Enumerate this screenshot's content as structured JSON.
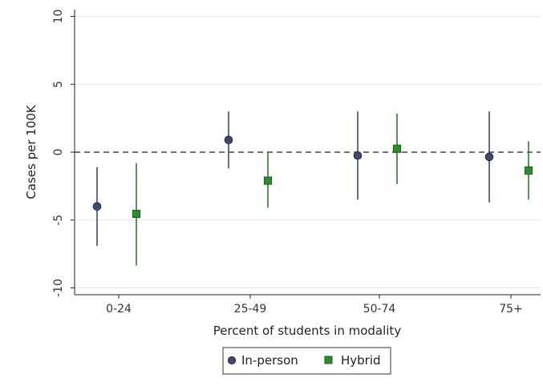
{
  "chart_data": {
    "type": "scatter",
    "subtype": "coefficient plot with confidence intervals",
    "categories": [
      "0-24",
      "25-49",
      "50-74",
      "75+"
    ],
    "xlabel": "Percent of students in modality",
    "ylabel": "Cases per 100K",
    "ylim": [
      -10.5,
      10.5
    ],
    "yticks": [
      10,
      5,
      0,
      -5,
      -10
    ],
    "ytick_labels": [
      "10",
      "5",
      "0",
      "-5",
      "-10"
    ],
    "reference_line": 0,
    "grid": "horizontal",
    "legend": "bottom-center",
    "series": [
      {
        "name": "In-person",
        "marker": "circle",
        "color": "#3c4b6e",
        "line_color": "#3c4b6e",
        "estimate": [
          -4.0,
          0.9,
          -0.25,
          -0.35
        ],
        "ci_low": [
          -6.9,
          -1.2,
          -3.5,
          -3.7
        ],
        "ci_high": [
          -1.1,
          3.0,
          3.0,
          3.0
        ]
      },
      {
        "name": "Hybrid",
        "marker": "square",
        "color": "#2e8b2e",
        "line_color": "#2e7d32",
        "estimate": [
          -4.55,
          -2.1,
          0.25,
          -1.35
        ],
        "ci_low": [
          -8.35,
          -4.1,
          -2.35,
          -3.5
        ],
        "ci_high": [
          -0.8,
          0.0,
          2.85,
          0.8
        ]
      }
    ]
  }
}
